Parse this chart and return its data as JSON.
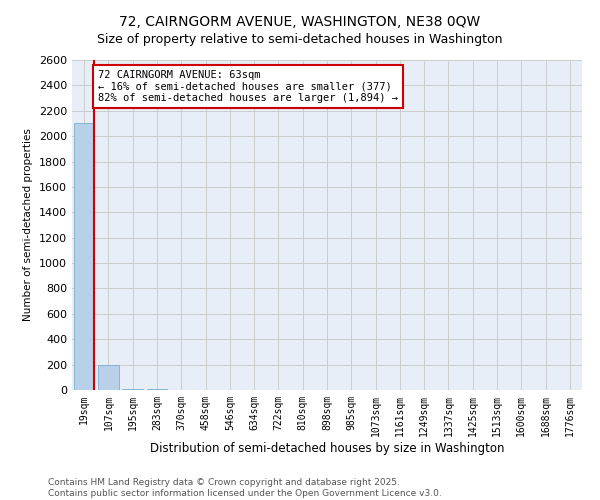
{
  "title": "72, CAIRNGORM AVENUE, WASHINGTON, NE38 0QW",
  "subtitle": "Size of property relative to semi-detached houses in Washington",
  "xlabel": "Distribution of semi-detached houses by size in Washington",
  "ylabel": "Number of semi-detached properties",
  "annotation_title": "72 CAIRNGORM AVENUE: 63sqm",
  "annotation_line1": "← 16% of semi-detached houses are smaller (377)",
  "annotation_line2": "82% of semi-detached houses are larger (1,894) →",
  "footnote1": "Contains HM Land Registry data © Crown copyright and database right 2025.",
  "footnote2": "Contains public sector information licensed under the Open Government Licence v3.0.",
  "property_size": 63,
  "bin_labels": [
    "19sqm",
    "107sqm",
    "195sqm",
    "283sqm",
    "370sqm",
    "458sqm",
    "546sqm",
    "634sqm",
    "722sqm",
    "810sqm",
    "898sqm",
    "985sqm",
    "1073sqm",
    "1161sqm",
    "1249sqm",
    "1337sqm",
    "1425sqm",
    "1513sqm",
    "1600sqm",
    "1688sqm",
    "1776sqm"
  ],
  "bar_heights": [
    2100,
    200,
    10,
    5,
    3,
    2,
    2,
    2,
    2,
    1,
    1,
    1,
    1,
    0,
    1,
    0,
    0,
    0,
    0,
    0,
    0
  ],
  "bar_color": "#b8d0e8",
  "bar_edge_color": "#7aadd4",
  "grid_color": "#cccccc",
  "background_color": "#e8eef8",
  "red_line_color": "#cc0000",
  "annotation_box_color": "#cc0000",
  "ylim": [
    0,
    2600
  ],
  "yticks": [
    0,
    200,
    400,
    600,
    800,
    1000,
    1200,
    1400,
    1600,
    1800,
    2000,
    2200,
    2400,
    2600
  ],
  "title_fontsize": 10,
  "subtitle_fontsize": 9,
  "ylabel_fontsize": 7.5,
  "xlabel_fontsize": 8.5,
  "tick_fontsize": 7,
  "annotation_fontsize": 7.5,
  "footnote_fontsize": 6.5
}
